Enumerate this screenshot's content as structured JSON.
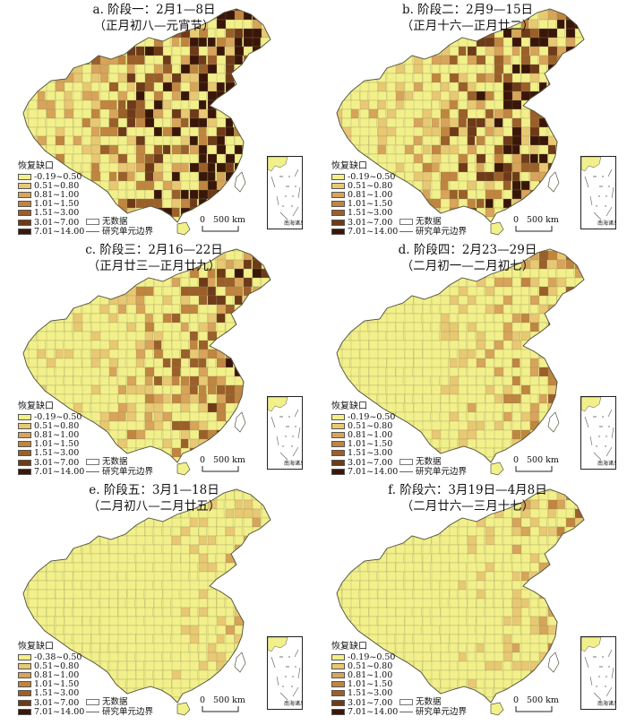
{
  "panels": [
    {
      "title_line1": "a. 阶段一：2月1—8日",
      "title_line2": "（正月初八—元宵节）"
    },
    {
      "title_line1": "b. 阶段二：2月9—15日",
      "title_line2": "（正月十六—正月廿二）"
    },
    {
      "title_line1": "c. 阶段三：2月16—22日",
      "title_line2": "（正月廿三—正月廿九）"
    },
    {
      "title_line1": "d. 阶段四：2月23—29日",
      "title_line2": "（二月初一—二月初七）"
    },
    {
      "title_line1": "e. 阶段五：3月1—18日",
      "title_line2": "（二月初八—二月廿五）"
    },
    {
      "title_line1": "f. 阶段六：3月19日—4月8日",
      "title_line2": "（二月廿六—三月十七）"
    }
  ],
  "legend": {
    "title": "恢复缺口",
    "classes": [
      "-0.19~0.50",
      "0.51~0.80",
      "0.81~1.00",
      "1.01~1.50",
      "1.51~3.00",
      "3.01~7.00",
      "7.01~14.00"
    ],
    "classes_panel_e": [
      "-0.38~0.50",
      "0.51~0.80",
      "0.81~1.00",
      "1.01~1.50",
      "1.51~3.00",
      "3.01~7.00",
      "7.01~14.00"
    ],
    "colors": [
      "#f2f08a",
      "#e8c872",
      "#d7a45a",
      "#c0853f",
      "#9b5f2a",
      "#6e3a18",
      "#3a1608"
    ],
    "no_data": "无数据",
    "boundary": "研究单元边界"
  },
  "scale_label": "500 km",
  "scale_zero": "0",
  "inset_label": "南海诸岛"
}
